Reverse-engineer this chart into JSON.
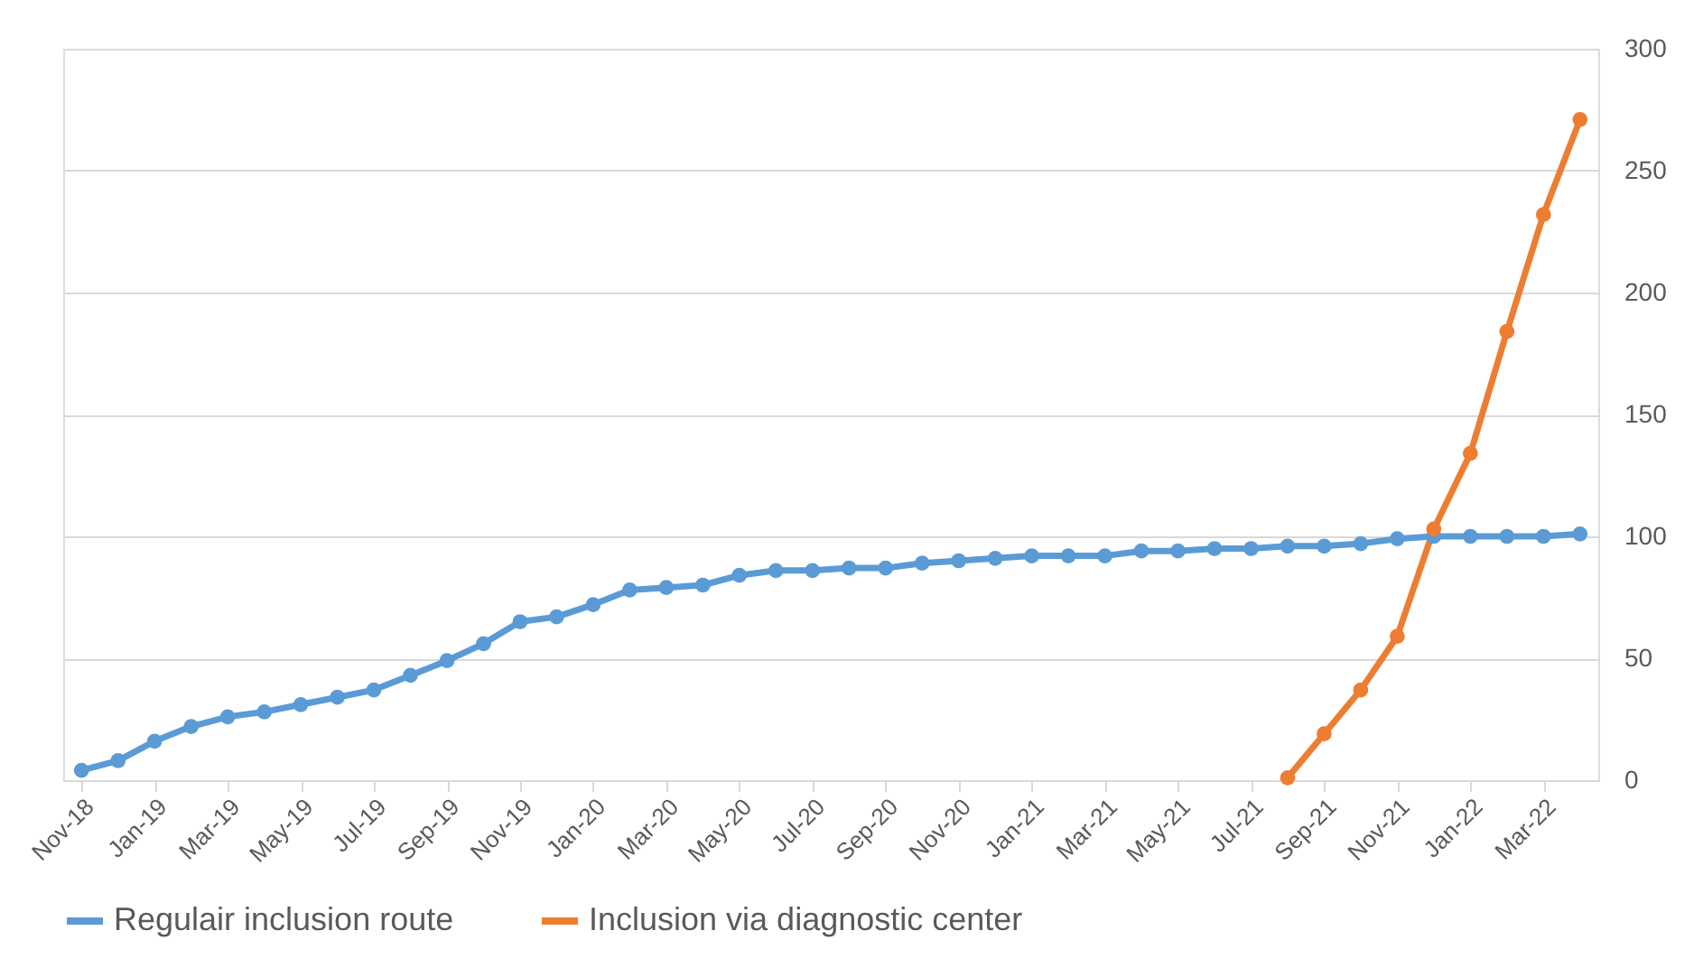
{
  "chart_data": {
    "type": "line",
    "categories": [
      "Nov-18",
      null,
      "Jan-19",
      null,
      "Mar-19",
      null,
      "May-19",
      null,
      "Jul-19",
      null,
      "Sep-19",
      null,
      "Nov-19",
      null,
      "Jan-20",
      null,
      "Mar-20",
      null,
      "May-20",
      null,
      "Jul-20",
      null,
      "Sep-20",
      null,
      "Nov-20",
      null,
      "Jan-21",
      null,
      "Mar-21",
      null,
      "May-21",
      null,
      "Jul-21",
      null,
      "Sep-21",
      null,
      "Nov-21",
      null,
      "Jan-22",
      null,
      "Mar-22",
      null
    ],
    "series": [
      {
        "name": "Regulair inclusion route",
        "color": "#5b9bd5",
        "values": [
          4,
          8,
          16,
          22,
          26,
          28,
          31,
          34,
          37,
          43,
          49,
          56,
          65,
          67,
          72,
          78,
          79,
          80,
          84,
          86,
          86,
          87,
          87,
          89,
          90,
          91,
          92,
          92,
          92,
          94,
          94,
          95,
          95,
          96,
          96,
          97,
          99,
          100,
          100,
          100,
          100,
          101
        ]
      },
      {
        "name": "Inclusion via diagnostic center",
        "color": "#ed7d31",
        "values": [
          null,
          null,
          null,
          null,
          null,
          null,
          null,
          null,
          null,
          null,
          null,
          null,
          null,
          null,
          null,
          null,
          null,
          null,
          null,
          null,
          null,
          null,
          null,
          null,
          null,
          null,
          null,
          null,
          null,
          null,
          null,
          null,
          null,
          1,
          19,
          37,
          59,
          103,
          134,
          184,
          232,
          271
        ]
      }
    ],
    "ylim": [
      0,
      300
    ],
    "yticks": [
      0,
      50,
      100,
      150,
      200,
      250,
      300
    ],
    "grid": "y",
    "legend": "bottom",
    "marker": "circle",
    "line_style": "solid"
  }
}
